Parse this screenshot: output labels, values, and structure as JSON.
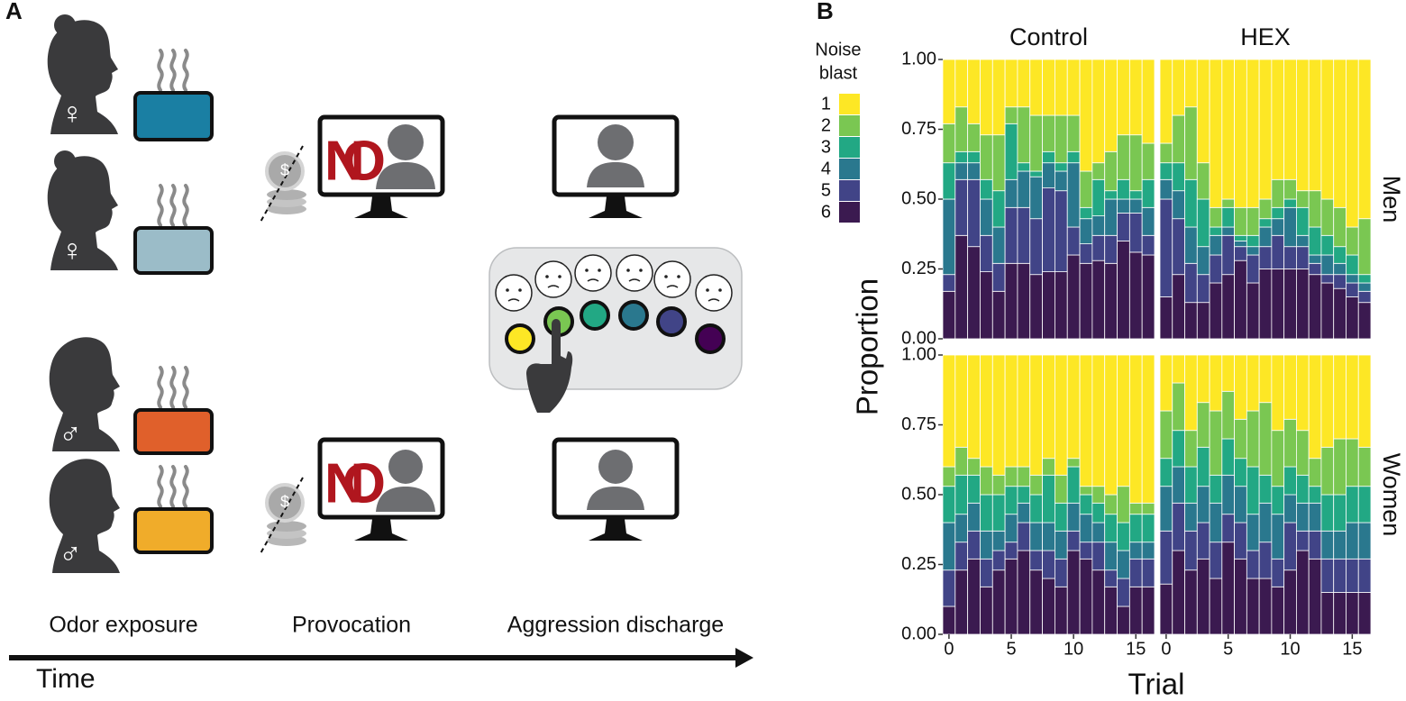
{
  "panel_a": {
    "label": "A",
    "stages": [
      "Odor exposure",
      "Provocation",
      "Aggression discharge"
    ],
    "time_label": "Time",
    "symbols": [
      "♀",
      "♀",
      "♂",
      "♂"
    ],
    "refusal": [
      "NO",
      "NO"
    ],
    "coin": [
      "$",
      "$"
    ]
  },
  "panel_b": {
    "label": "B",
    "legend_title": [
      "Noise",
      "blast"
    ],
    "y_label": "Proportion",
    "x_label": "Trial"
  },
  "chart_data": [
    {
      "type": "stacked_bar",
      "title": "Control",
      "x": [
        0,
        1,
        2,
        3,
        4,
        5,
        6,
        7,
        8,
        9,
        10,
        11,
        12,
        13,
        14,
        15,
        16
      ],
      "xlim": [
        -0.5,
        16.5
      ],
      "ylim": [
        0,
        1
      ],
      "yticks": [
        {
          "value": 0,
          "label": "0.00"
        },
        {
          "value": 0.25,
          "label": "0.25"
        },
        {
          "value": 0.5,
          "label": "0.50"
        },
        {
          "value": 0.75,
          "label": "0.75"
        },
        {
          "value": 1,
          "label": "1.00"
        }
      ],
      "series": [
        {
          "name": "1",
          "color": "#fde725",
          "values": [
            0.23,
            0.17,
            0.23,
            0.27,
            0.27,
            0.17,
            0.17,
            0.2,
            0.2,
            0.2,
            0.2,
            0.4,
            0.37,
            0.33,
            0.27,
            0.27,
            0.3
          ]
        },
        {
          "name": "2",
          "color": "#7ac752",
          "values": [
            0.14,
            0.16,
            0.1,
            0.16,
            0.2,
            0.06,
            0.2,
            0.2,
            0.13,
            0.17,
            0.13,
            0.13,
            0.06,
            0.14,
            0.16,
            0.2,
            0.13
          ]
        },
        {
          "name": "3",
          "color": "#22a884",
          "values": [
            0.13,
            0.04,
            0.04,
            0.07,
            0.13,
            0.2,
            0.03,
            0.02,
            0.04,
            0.03,
            0.04,
            0.04,
            0.13,
            0.03,
            0.07,
            0.03,
            0.1
          ]
        },
        {
          "name": "4",
          "color": "#2a788e",
          "values": [
            0.27,
            0.06,
            0.06,
            0.13,
            0.13,
            0.1,
            0.13,
            0.15,
            0.09,
            0.07,
            0.23,
            0.09,
            0.07,
            0.13,
            0.05,
            0.05,
            0.1
          ]
        },
        {
          "name": "5",
          "color": "#414487",
          "values": [
            0.06,
            0.2,
            0.24,
            0.13,
            0.1,
            0.2,
            0.2,
            0.2,
            0.3,
            0.29,
            0.1,
            0.07,
            0.09,
            0.1,
            0.1,
            0.14,
            0.07
          ]
        },
        {
          "name": "6",
          "color": "#3b1a50",
          "values": [
            0.17,
            0.37,
            0.33,
            0.24,
            0.17,
            0.27,
            0.27,
            0.23,
            0.24,
            0.24,
            0.3,
            0.27,
            0.28,
            0.27,
            0.35,
            0.31,
            0.3
          ]
        }
      ]
    },
    {
      "type": "stacked_bar",
      "title": "HEX",
      "row_label": "Men",
      "x": [
        0,
        1,
        2,
        3,
        4,
        5,
        6,
        7,
        8,
        9,
        10,
        11,
        12,
        13,
        14,
        15,
        16
      ],
      "xlim": [
        -0.5,
        16.5
      ],
      "ylim": [
        0,
        1
      ],
      "series": [
        {
          "name": "1",
          "color": "#fde725",
          "values": [
            0.3,
            0.2,
            0.17,
            0.37,
            0.53,
            0.5,
            0.53,
            0.53,
            0.5,
            0.43,
            0.43,
            0.47,
            0.47,
            0.5,
            0.53,
            0.6,
            0.57
          ]
        },
        {
          "name": "2",
          "color": "#7ac752",
          "values": [
            0.07,
            0.17,
            0.26,
            0.13,
            0.07,
            0.03,
            0.1,
            0.1,
            0.07,
            0.1,
            0.07,
            0.06,
            0.13,
            0.13,
            0.14,
            0.1,
            0.2
          ]
        },
        {
          "name": "3",
          "color": "#22a884",
          "values": [
            0.06,
            0.1,
            0.17,
            0.17,
            0.03,
            0.07,
            0.02,
            0.04,
            0.03,
            0.04,
            0.03,
            0.1,
            0.1,
            0.07,
            0.06,
            0.07,
            0.03
          ]
        },
        {
          "name": "4",
          "color": "#2a788e",
          "values": [
            0.07,
            0.1,
            0.13,
            0.1,
            0.07,
            0.03,
            0.02,
            0.03,
            0.07,
            0.06,
            0.14,
            0.04,
            0.03,
            0.07,
            0.04,
            0.03,
            0.03
          ]
        },
        {
          "name": "5",
          "color": "#414487",
          "values": [
            0.35,
            0.2,
            0.14,
            0.1,
            0.1,
            0.14,
            0.05,
            0.1,
            0.08,
            0.12,
            0.08,
            0.08,
            0.04,
            0.03,
            0.05,
            0.05,
            0.04
          ]
        },
        {
          "name": "6",
          "color": "#3b1a50",
          "values": [
            0.15,
            0.23,
            0.13,
            0.13,
            0.2,
            0.23,
            0.28,
            0.2,
            0.25,
            0.25,
            0.25,
            0.25,
            0.23,
            0.2,
            0.18,
            0.15,
            0.13
          ]
        }
      ]
    },
    {
      "type": "stacked_bar",
      "x": [
        0,
        1,
        2,
        3,
        4,
        5,
        6,
        7,
        8,
        9,
        10,
        11,
        12,
        13,
        14,
        15,
        16
      ],
      "xlim": [
        -0.5,
        16.5
      ],
      "xticks": [
        0,
        5,
        10,
        15
      ],
      "ylim": [
        0,
        1
      ],
      "yticks": [
        {
          "value": 0,
          "label": "0.00"
        },
        {
          "value": 0.25,
          "label": "0.25"
        },
        {
          "value": 0.5,
          "label": "0.50"
        },
        {
          "value": 0.75,
          "label": "0.75"
        },
        {
          "value": 1,
          "label": "1.00"
        }
      ],
      "series": [
        {
          "name": "1",
          "color": "#fde725",
          "values": [
            0.4,
            0.33,
            0.37,
            0.4,
            0.43,
            0.4,
            0.4,
            0.43,
            0.37,
            0.43,
            0.37,
            0.47,
            0.47,
            0.5,
            0.47,
            0.53,
            0.53
          ]
        },
        {
          "name": "2",
          "color": "#7ac752",
          "values": [
            0.07,
            0.1,
            0.06,
            0.1,
            0.07,
            0.07,
            0.07,
            0.07,
            0.06,
            0.1,
            0.03,
            0.03,
            0.06,
            0.07,
            0.13,
            0.04,
            0.04
          ]
        },
        {
          "name": "3",
          "color": "#22a884",
          "values": [
            0.13,
            0.14,
            0.1,
            0.13,
            0.13,
            0.1,
            0.06,
            0.1,
            0.17,
            0.1,
            0.13,
            0.07,
            0.07,
            0.1,
            0.1,
            0.1,
            0.1
          ]
        },
        {
          "name": "4",
          "color": "#2a788e",
          "values": [
            0.17,
            0.1,
            0.1,
            0.1,
            0.07,
            0.1,
            0.07,
            0.1,
            0.1,
            0.1,
            0.1,
            0.1,
            0.07,
            0.1,
            0.1,
            0.06,
            0.06
          ]
        },
        {
          "name": "5",
          "color": "#414487",
          "values": [
            0.13,
            0.1,
            0.1,
            0.1,
            0.07,
            0.06,
            0.1,
            0.07,
            0.1,
            0.1,
            0.07,
            0.06,
            0.1,
            0.06,
            0.1,
            0.1,
            0.1
          ]
        },
        {
          "name": "6",
          "color": "#3b1a50",
          "values": [
            0.1,
            0.23,
            0.27,
            0.17,
            0.23,
            0.27,
            0.3,
            0.23,
            0.2,
            0.17,
            0.3,
            0.27,
            0.23,
            0.17,
            0.1,
            0.17,
            0.17
          ]
        }
      ]
    },
    {
      "type": "stacked_bar",
      "row_label": "Women",
      "x": [
        0,
        1,
        2,
        3,
        4,
        5,
        6,
        7,
        8,
        9,
        10,
        11,
        12,
        13,
        14,
        15,
        16
      ],
      "xlim": [
        -0.5,
        16.5
      ],
      "xticks": [
        0,
        5,
        10,
        15
      ],
      "ylim": [
        0,
        1
      ],
      "series": [
        {
          "name": "1",
          "color": "#fde725",
          "values": [
            0.2,
            0.1,
            0.27,
            0.17,
            0.2,
            0.13,
            0.23,
            0.2,
            0.17,
            0.27,
            0.23,
            0.27,
            0.37,
            0.33,
            0.3,
            0.3,
            0.33
          ]
        },
        {
          "name": "2",
          "color": "#7ac752",
          "values": [
            0.17,
            0.17,
            0.13,
            0.16,
            0.23,
            0.17,
            0.14,
            0.2,
            0.26,
            0.2,
            0.17,
            0.16,
            0.1,
            0.17,
            0.2,
            0.17,
            0.14
          ]
        },
        {
          "name": "3",
          "color": "#22a884",
          "values": [
            0.1,
            0.13,
            0.13,
            0.14,
            0.1,
            0.13,
            0.1,
            0.17,
            0.1,
            0.1,
            0.1,
            0.1,
            0.06,
            0.13,
            0.13,
            0.13,
            0.13
          ]
        },
        {
          "name": "4",
          "color": "#2a788e",
          "values": [
            0.16,
            0.13,
            0.1,
            0.13,
            0.14,
            0.14,
            0.13,
            0.13,
            0.14,
            0.16,
            0.1,
            0.1,
            0.1,
            0.1,
            0.1,
            0.13,
            0.13
          ]
        },
        {
          "name": "5",
          "color": "#414487",
          "values": [
            0.19,
            0.17,
            0.14,
            0.13,
            0.13,
            0.1,
            0.13,
            0.1,
            0.13,
            0.1,
            0.17,
            0.07,
            0.1,
            0.12,
            0.12,
            0.12,
            0.12
          ]
        },
        {
          "name": "6",
          "color": "#3b1a50",
          "values": [
            0.18,
            0.3,
            0.23,
            0.27,
            0.2,
            0.33,
            0.27,
            0.2,
            0.2,
            0.17,
            0.23,
            0.3,
            0.27,
            0.15,
            0.15,
            0.15,
            0.15
          ]
        }
      ]
    }
  ]
}
